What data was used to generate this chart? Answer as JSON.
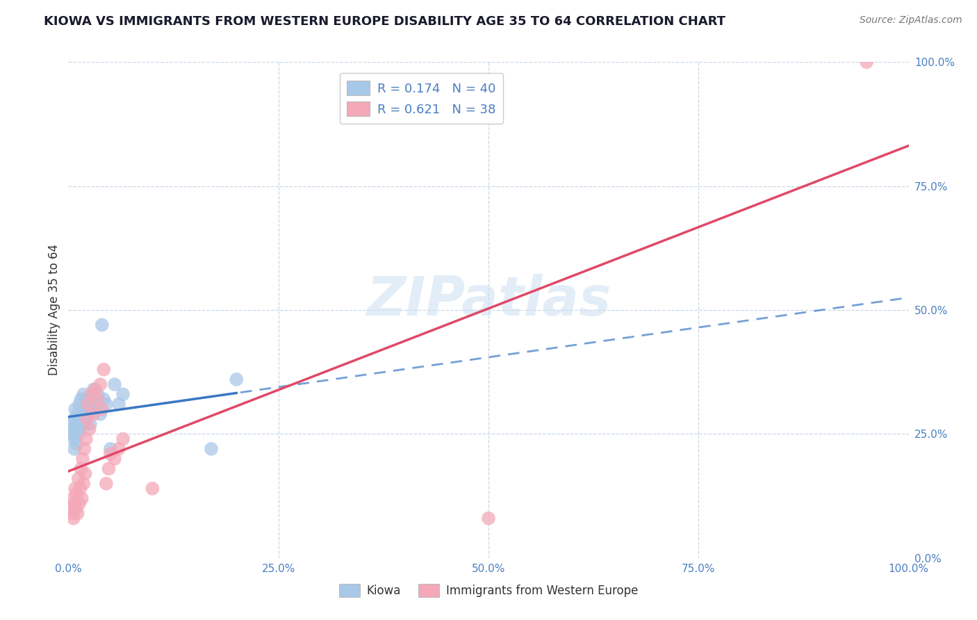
{
  "title": "KIOWA VS IMMIGRANTS FROM WESTERN EUROPE DISABILITY AGE 35 TO 64 CORRELATION CHART",
  "source_text": "Source: ZipAtlas.com",
  "ylabel": "Disability Age 35 to 64",
  "kiowa_R": 0.174,
  "kiowa_N": 40,
  "immigrant_R": 0.621,
  "immigrant_N": 38,
  "kiowa_color": "#a8c8e8",
  "immigrant_color": "#f4a8b8",
  "kiowa_line_color": "#3a78c4",
  "immigrant_line_color": "#e04868",
  "watermark": "ZIPatlas",
  "tick_color": "#4a7fc1",
  "grid_color": "#c8d8e8",
  "kiowa_points": [
    [
      0.003,
      0.27
    ],
    [
      0.004,
      0.25
    ],
    [
      0.005,
      0.26
    ],
    [
      0.006,
      0.24
    ],
    [
      0.007,
      0.28
    ],
    [
      0.007,
      0.22
    ],
    [
      0.008,
      0.3
    ],
    [
      0.009,
      0.26
    ],
    [
      0.01,
      0.23
    ],
    [
      0.01,
      0.27
    ],
    [
      0.011,
      0.29
    ],
    [
      0.012,
      0.25
    ],
    [
      0.013,
      0.28
    ],
    [
      0.013,
      0.31
    ],
    [
      0.014,
      0.26
    ],
    [
      0.015,
      0.32
    ],
    [
      0.016,
      0.27
    ],
    [
      0.017,
      0.29
    ],
    [
      0.018,
      0.33
    ],
    [
      0.019,
      0.27
    ],
    [
      0.02,
      0.3
    ],
    [
      0.021,
      0.28
    ],
    [
      0.022,
      0.32
    ],
    [
      0.023,
      0.29
    ],
    [
      0.025,
      0.31
    ],
    [
      0.026,
      0.27
    ],
    [
      0.027,
      0.3
    ],
    [
      0.03,
      0.34
    ],
    [
      0.032,
      0.31
    ],
    [
      0.035,
      0.33
    ],
    [
      0.038,
      0.29
    ],
    [
      0.04,
      0.47
    ],
    [
      0.042,
      0.32
    ],
    [
      0.045,
      0.31
    ],
    [
      0.05,
      0.22
    ],
    [
      0.055,
      0.35
    ],
    [
      0.06,
      0.31
    ],
    [
      0.065,
      0.33
    ],
    [
      0.17,
      0.22
    ],
    [
      0.2,
      0.36
    ]
  ],
  "immigrant_points": [
    [
      0.003,
      0.1
    ],
    [
      0.004,
      0.09
    ],
    [
      0.005,
      0.12
    ],
    [
      0.006,
      0.08
    ],
    [
      0.007,
      0.11
    ],
    [
      0.008,
      0.14
    ],
    [
      0.009,
      0.1
    ],
    [
      0.01,
      0.13
    ],
    [
      0.011,
      0.09
    ],
    [
      0.012,
      0.16
    ],
    [
      0.013,
      0.11
    ],
    [
      0.014,
      0.14
    ],
    [
      0.015,
      0.18
    ],
    [
      0.016,
      0.12
    ],
    [
      0.017,
      0.2
    ],
    [
      0.018,
      0.15
    ],
    [
      0.019,
      0.22
    ],
    [
      0.02,
      0.17
    ],
    [
      0.021,
      0.24
    ],
    [
      0.022,
      0.28
    ],
    [
      0.023,
      0.31
    ],
    [
      0.025,
      0.26
    ],
    [
      0.027,
      0.33
    ],
    [
      0.03,
      0.29
    ],
    [
      0.032,
      0.34
    ],
    [
      0.035,
      0.32
    ],
    [
      0.038,
      0.35
    ],
    [
      0.04,
      0.3
    ],
    [
      0.042,
      0.38
    ],
    [
      0.045,
      0.15
    ],
    [
      0.048,
      0.18
    ],
    [
      0.05,
      0.21
    ],
    [
      0.055,
      0.2
    ],
    [
      0.06,
      0.22
    ],
    [
      0.065,
      0.24
    ],
    [
      0.1,
      0.14
    ],
    [
      0.5,
      0.08
    ],
    [
      0.95,
      1.0
    ]
  ]
}
